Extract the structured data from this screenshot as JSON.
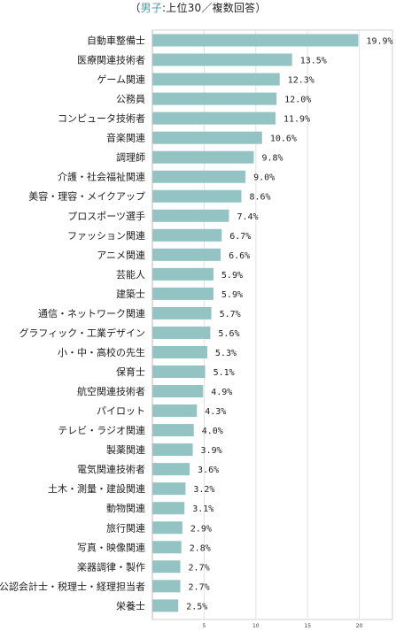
{
  "title": {
    "prefix": "（",
    "lead": "男子",
    "rest": ":上位30／複数回答）"
  },
  "chart_data": {
    "type": "bar",
    "orientation": "horizontal",
    "title": "（男子:上位30／複数回答）",
    "categories": [
      "自動車整備士",
      "医療関連技術者",
      "ゲーム関連",
      "公務員",
      "コンピュータ技術者",
      "音楽関連",
      "調理師",
      "介護・社会福祉関連",
      "美容・理容・メイクアップ",
      "プロスポーツ選手",
      "ファッション関連",
      "アニメ関連",
      "芸能人",
      "建築士",
      "通信・ネットワーク関連",
      "グラフィック・工業デザイン",
      "小・中・高校の先生",
      "保育士",
      "航空関連技術者",
      "パイロット",
      "テレビ・ラジオ関連",
      "製薬関連",
      "電気関連技術者",
      "土木・測量・建設関連",
      "動物関連",
      "旅行関連",
      "写真・映像関連",
      "楽器調律・製作",
      "公認会計士・税理士・経理担当者",
      "栄養士"
    ],
    "values": [
      19.9,
      13.5,
      12.3,
      12.0,
      11.9,
      10.6,
      9.8,
      9.0,
      8.6,
      7.4,
      6.7,
      6.6,
      5.9,
      5.9,
      5.7,
      5.6,
      5.3,
      5.1,
      4.9,
      4.3,
      4.0,
      3.9,
      3.6,
      3.2,
      3.1,
      2.9,
      2.8,
      2.7,
      2.7,
      2.5
    ],
    "value_labels": [
      "19.9%",
      "13.5%",
      "12.3%",
      "12.0%",
      "11.9%",
      "10.6%",
      "9.8%",
      "9.0%",
      "8.6%",
      "7.4%",
      "6.7%",
      "6.6%",
      "5.9%",
      "5.9%",
      "5.7%",
      "5.6%",
      "5.3%",
      "5.1%",
      "4.9%",
      "4.3%",
      "4.0%",
      "3.9%",
      "3.6%",
      "3.2%",
      "3.1%",
      "2.9%",
      "2.8%",
      "2.7%",
      "2.7%",
      "2.5%"
    ],
    "xticks": [
      "5",
      "10",
      "15",
      "20"
    ],
    "xtick_values": [
      5,
      10,
      15,
      20
    ],
    "xlim": [
      0,
      23.2
    ],
    "grid": true,
    "bar_color": "#93c3c3",
    "grid_color": "#e2e2e2"
  }
}
